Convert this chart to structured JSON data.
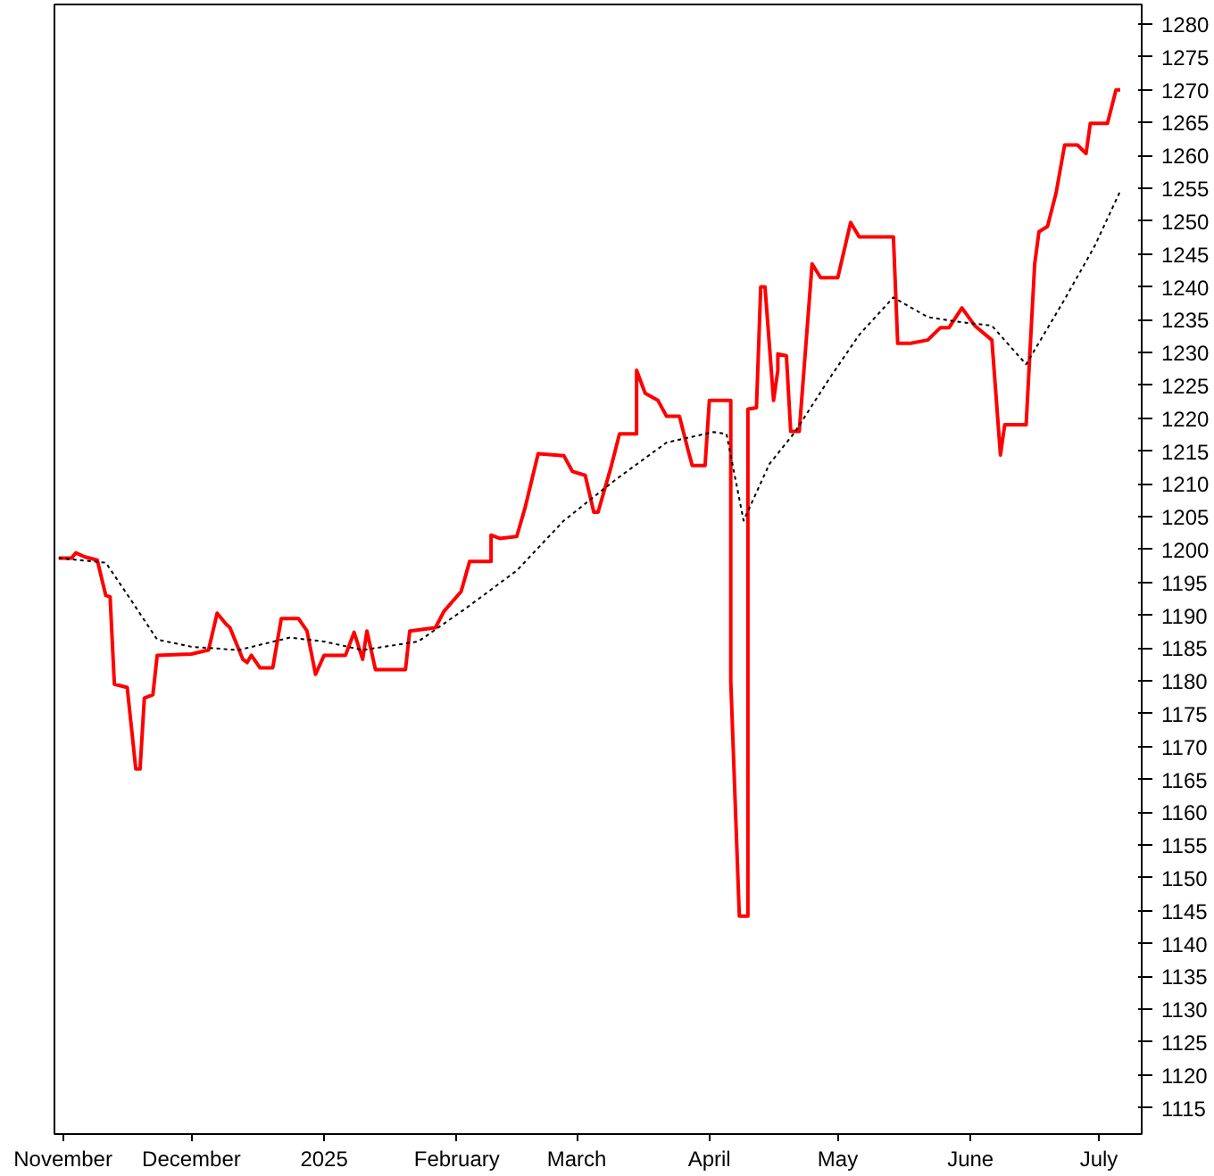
{
  "chart_data": {
    "type": "line",
    "grid": false,
    "xlim": [
      "2024-10-30",
      "2025-07-11"
    ],
    "ylim": [
      1111,
      1283
    ],
    "xticks": [
      {
        "value": "2024-11-01",
        "label": "November"
      },
      {
        "value": "2024-12-01",
        "label": "December"
      },
      {
        "value": "2025-01-01",
        "label": "2025"
      },
      {
        "value": "2025-02-01",
        "label": "February"
      },
      {
        "value": "2025-03-01",
        "label": "March"
      },
      {
        "value": "2025-04-01",
        "label": "April"
      },
      {
        "value": "2025-05-01",
        "label": "May"
      },
      {
        "value": "2025-06-01",
        "label": "June"
      },
      {
        "value": "2025-07-01",
        "label": "July"
      }
    ],
    "yticks": [
      1115,
      1120,
      1125,
      1130,
      1135,
      1140,
      1145,
      1150,
      1155,
      1160,
      1165,
      1170,
      1175,
      1180,
      1185,
      1190,
      1195,
      1200,
      1205,
      1210,
      1215,
      1220,
      1225,
      1230,
      1235,
      1240,
      1245,
      1250,
      1255,
      1260,
      1265,
      1270,
      1275,
      1280
    ],
    "series": [
      {
        "color": "#ff0000",
        "line_style": "solid",
        "x": [
          "2024-10-31",
          "2024-11-03",
          "2024-11-04",
          "2024-11-06",
          "2024-11-09",
          "2024-11-11",
          "2024-11-12",
          "2024-11-13",
          "2024-11-16",
          "2024-11-18",
          "2024-11-19",
          "2024-11-20",
          "2024-11-22",
          "2024-11-23",
          "2024-12-01",
          "2024-12-05",
          "2024-12-07",
          "2024-12-09",
          "2024-12-10",
          "2024-12-13",
          "2024-12-14",
          "2024-12-15",
          "2024-12-17",
          "2024-12-20",
          "2024-12-22",
          "2024-12-26",
          "2024-12-28",
          "2024-12-30",
          "2025-01-01",
          "2025-01-06",
          "2025-01-08",
          "2025-01-10",
          "2025-01-11",
          "2025-01-13",
          "2025-01-20",
          "2025-01-21",
          "2025-01-27",
          "2025-01-29",
          "2025-02-02",
          "2025-02-04",
          "2025-02-09",
          "2025-02-09",
          "2025-02-11",
          "2025-02-15",
          "2025-02-17",
          "2025-02-20",
          "2025-02-26",
          "2025-02-28",
          "2025-03-03",
          "2025-03-05",
          "2025-03-06",
          "2025-03-09",
          "2025-03-11",
          "2025-03-15",
          "2025-03-15",
          "2025-03-17",
          "2025-03-20",
          "2025-03-22",
          "2025-03-25",
          "2025-03-27",
          "2025-03-28",
          "2025-03-31",
          "2025-04-01",
          "2025-04-06",
          "2025-04-06",
          "2025-04-08",
          "2025-04-10",
          "2025-04-10",
          "2025-04-12",
          "2025-04-13",
          "2025-04-14",
          "2025-04-16",
          "2025-04-17",
          "2025-04-17",
          "2025-04-19",
          "2025-04-20",
          "2025-04-22",
          "2025-04-25",
          "2025-04-27",
          "2025-05-01",
          "2025-05-04",
          "2025-05-06",
          "2025-05-14",
          "2025-05-15",
          "2025-05-18",
          "2025-05-22",
          "2025-05-25",
          "2025-05-27",
          "2025-05-30",
          "2025-06-02",
          "2025-06-06",
          "2025-06-08",
          "2025-06-09",
          "2025-06-14",
          "2025-06-15",
          "2025-06-16",
          "2025-06-17",
          "2025-06-19",
          "2025-06-21",
          "2025-06-23",
          "2025-06-26",
          "2025-06-28",
          "2025-06-29",
          "2025-07-03",
          "2025-07-05",
          "2025-07-06"
        ],
        "values": [
          1198.7,
          1198.7,
          1199.5,
          1198.9,
          1198.4,
          1193,
          1192.8,
          1179.5,
          1179,
          1166.6,
          1166.6,
          1177.4,
          1177.9,
          1183.9,
          1184.1,
          1184.7,
          1190.3,
          1188.7,
          1188.1,
          1183.3,
          1182.8,
          1183.9,
          1182,
          1182,
          1189.5,
          1189.5,
          1187.6,
          1181,
          1183.9,
          1183.9,
          1187.4,
          1183.3,
          1187.6,
          1181.7,
          1181.7,
          1187.6,
          1188.1,
          1190.6,
          1193.6,
          1198.2,
          1198.2,
          1202.2,
          1201.7,
          1202,
          1206.5,
          1214.6,
          1214.3,
          1211.9,
          1211.3,
          1205.7,
          1205.7,
          1212.5,
          1217.6,
          1217.6,
          1227.3,
          1223.8,
          1222.7,
          1220.3,
          1220.3,
          1215.2,
          1212.8,
          1212.8,
          1222.7,
          1222.7,
          1180,
          1144.2,
          1144.2,
          1221.4,
          1221.6,
          1240,
          1240,
          1222.7,
          1227.3,
          1229.8,
          1229.5,
          1218,
          1218,
          1243.5,
          1241.4,
          1241.4,
          1249.8,
          1247.6,
          1247.6,
          1231.4,
          1231.4,
          1231.9,
          1233.8,
          1233.8,
          1236.8,
          1234.1,
          1231.9,
          1214.4,
          1219,
          1219,
          1231.4,
          1243.5,
          1248.4,
          1249.2,
          1254.3,
          1261.6,
          1261.6,
          1260.3,
          1264.9,
          1264.9,
          1270,
          1270
        ]
      },
      {
        "color": "#000000",
        "line_style": "dashed",
        "x": [
          "2024-10-31",
          "2024-11-11",
          "2024-11-17",
          "2024-11-23",
          "2024-12-01",
          "2024-12-12",
          "2024-12-24",
          "2025-01-01",
          "2025-01-10",
          "2025-01-23",
          "2025-02-03",
          "2025-02-15",
          "2025-02-26",
          "2025-03-10",
          "2025-03-22",
          "2025-04-02",
          "2025-04-05",
          "2025-04-09",
          "2025-04-15",
          "2025-04-21",
          "2025-04-29",
          "2025-05-06",
          "2025-05-14",
          "2025-05-22",
          "2025-05-30",
          "2025-06-06",
          "2025-06-14",
          "2025-06-23",
          "2025-06-30",
          "2025-07-06"
        ],
        "values": [
          1198.7,
          1198,
          1192.2,
          1186.3,
          1185.2,
          1184.7,
          1186.6,
          1186,
          1184.7,
          1186,
          1191,
          1196.8,
          1204.4,
          1210.6,
          1216.3,
          1217.9,
          1217.6,
          1204.4,
          1213,
          1217.9,
          1226,
          1232.7,
          1238.4,
          1235.4,
          1234.6,
          1234.1,
          1228.2,
          1238.1,
          1246.2,
          1254.6
        ]
      }
    ]
  }
}
